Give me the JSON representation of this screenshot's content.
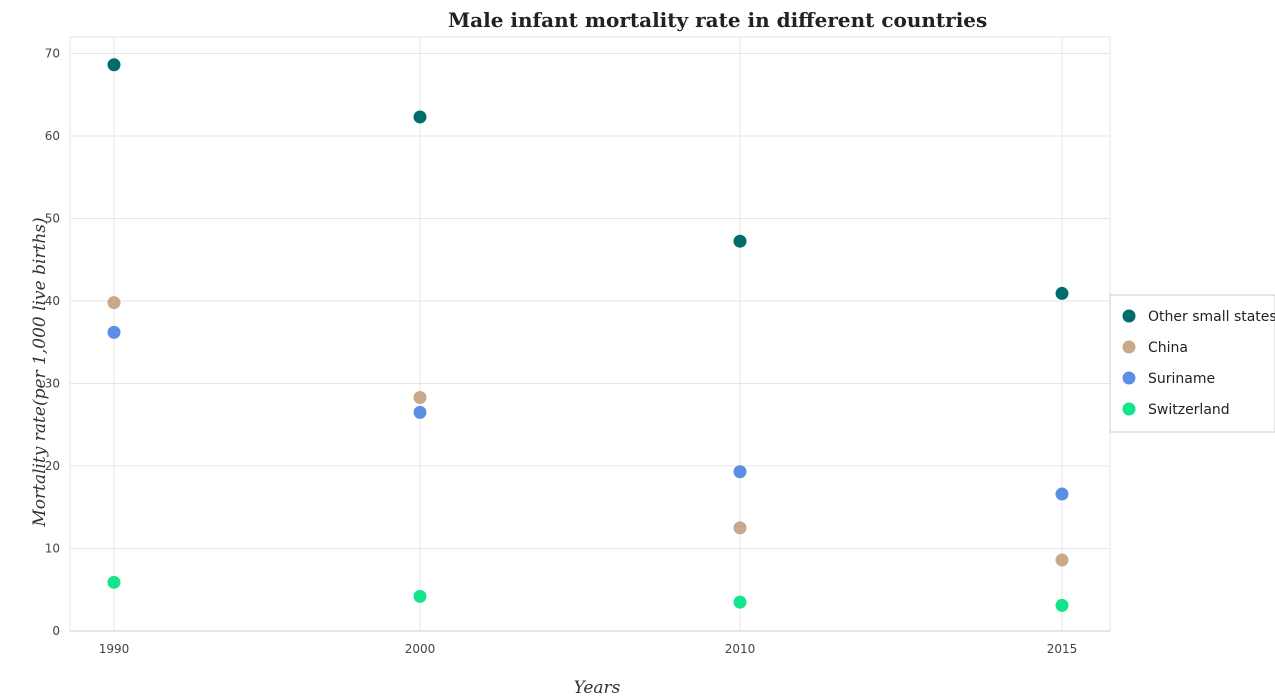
{
  "chart_data": {
    "type": "scatter",
    "title": "Male infant mortality rate in different countries",
    "xlabel": "Years",
    "ylabel": "Mortality rate(per 1,000 live births)",
    "categories": [
      "1990",
      "2000",
      "2010",
      "2015"
    ],
    "ylim": [
      0,
      72
    ],
    "yticks": [
      0,
      10,
      20,
      30,
      40,
      50,
      60,
      70
    ],
    "grid": true,
    "legend_position": "right",
    "series": [
      {
        "name": "Other small states",
        "color": "#006d6d",
        "values": [
          68.63,
          62.31,
          47.25,
          40.92
        ]
      },
      {
        "name": "China",
        "color": "#c8a98a",
        "values": [
          39.8,
          28.3,
          12.5,
          8.6
        ]
      },
      {
        "name": "Suriname",
        "color": "#5b8fe6",
        "values": [
          36.2,
          26.5,
          19.3,
          16.6
        ]
      },
      {
        "name": "Switzerland",
        "color": "#12e58a",
        "values": [
          5.9,
          4.2,
          3.5,
          3.1
        ]
      }
    ]
  }
}
